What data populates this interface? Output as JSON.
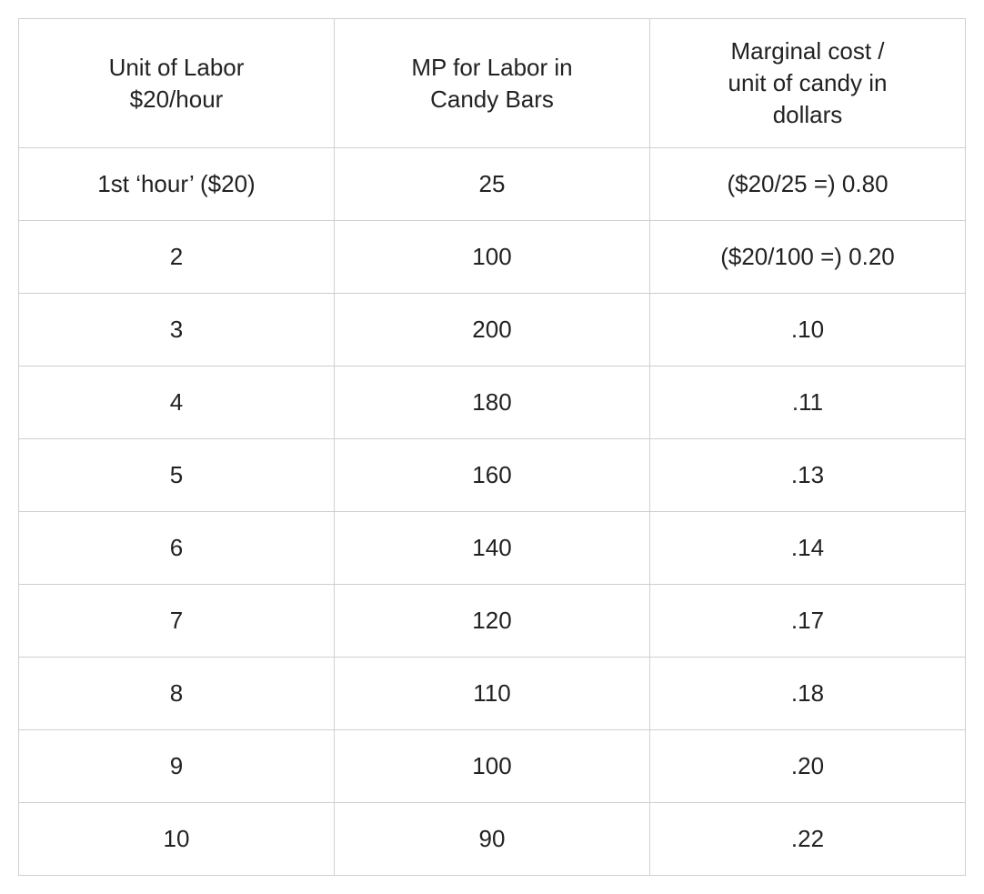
{
  "table": {
    "type": "table",
    "border_color": "#cfcfcf",
    "background_color": "#ffffff",
    "text_color": "#222222",
    "font_family": "Arial, Helvetica, sans-serif",
    "header_fontsize": 26,
    "cell_fontsize": 26,
    "column_count": 3,
    "column_widths_pct": [
      33.3,
      33.3,
      33.4
    ],
    "columns": [
      "Unit of Labor\n$20/hour",
      "MP for Labor in\nCandy Bars",
      "Marginal cost /\nunit of candy in\ndollars"
    ],
    "rows": [
      [
        "1st ‘hour’ ($20)",
        "25",
        "($20/25 =) 0.80"
      ],
      [
        "2",
        "100",
        "($20/100 =) 0.20"
      ],
      [
        "3",
        "200",
        ".10"
      ],
      [
        "4",
        "180",
        ".11"
      ],
      [
        "5",
        "160",
        ".13"
      ],
      [
        "6",
        "140",
        ".14"
      ],
      [
        "7",
        "120",
        ".17"
      ],
      [
        "8",
        "110",
        ".18"
      ],
      [
        "9",
        "100",
        ".20"
      ],
      [
        "10",
        "90",
        ".22"
      ]
    ]
  }
}
